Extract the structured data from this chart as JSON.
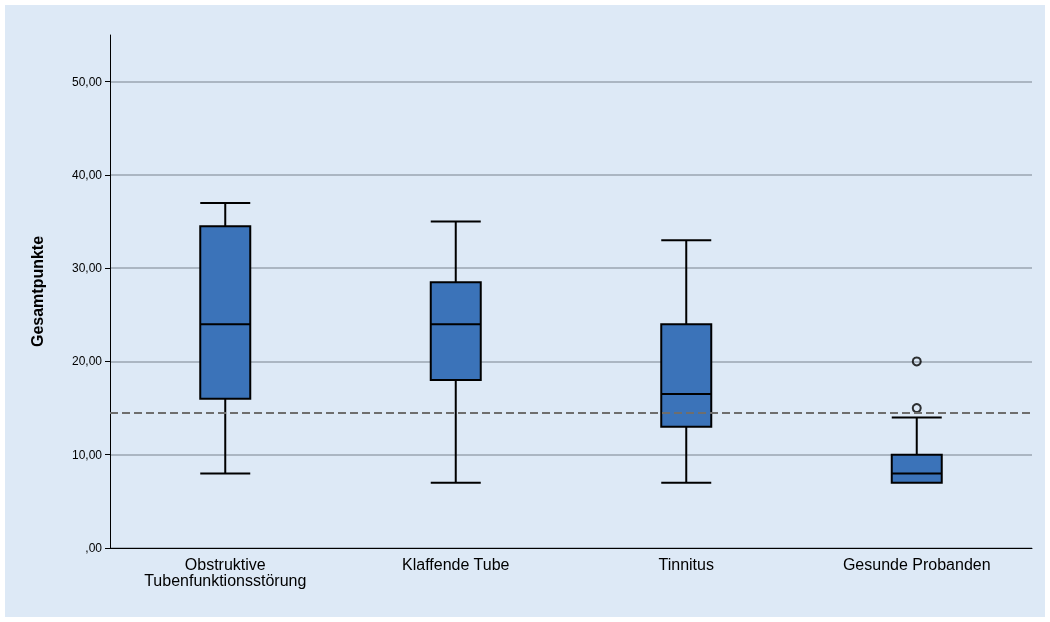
{
  "chart_data": {
    "type": "box",
    "ylabel": "Gesamtpunkte",
    "categories": [
      "Obstruktive Tubenfunktionsstörung",
      "Klaffende Tube",
      "Tinnitus",
      "Gesunde Probanden"
    ],
    "color": "#3b73b9",
    "boxes": [
      {
        "low": 8,
        "q1": 16,
        "median": 24,
        "q3": 34.5,
        "high": 37
      },
      {
        "low": 7,
        "q1": 18,
        "median": 24,
        "q3": 28.5,
        "high": 35
      },
      {
        "low": 7,
        "q1": 13,
        "median": 16.5,
        "q3": 24,
        "high": 33
      },
      {
        "low": 7,
        "q1": 7,
        "median": 8,
        "q3": 10,
        "high": 14,
        "outliers": [
          15,
          20
        ]
      }
    ],
    "ylim": [
      0,
      55
    ],
    "yticks": [
      {
        "value": 0,
        "label": ",00"
      },
      {
        "value": 10,
        "label": "10,00"
      },
      {
        "value": 20,
        "label": "20,00"
      },
      {
        "value": 30,
        "label": "30,00"
      },
      {
        "value": 40,
        "label": "40,00"
      },
      {
        "value": 50,
        "label": "50,00"
      }
    ],
    "grid": "y",
    "ref_lines": [
      {
        "axis": "y",
        "value": 14.5,
        "color": "#6e6e6e",
        "line_style": "dashed"
      }
    ]
  }
}
